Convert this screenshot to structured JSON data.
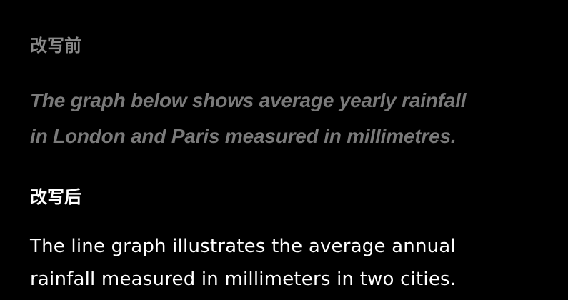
{
  "before": {
    "label": "改写前",
    "lines": [
      "The graph below shows average yearly rainfall",
      "in London and Paris measured in millimetres."
    ]
  },
  "after": {
    "label": "改写后",
    "lines": [
      "The line graph illustrates the average annual",
      "rainfall measured in millimeters in two cities."
    ]
  },
  "colors": {
    "background": "#000000",
    "before_label": "#8a8a8a",
    "before_text": "#7a7a7a",
    "after_label": "#ffffff",
    "after_text": "#ffffff"
  }
}
